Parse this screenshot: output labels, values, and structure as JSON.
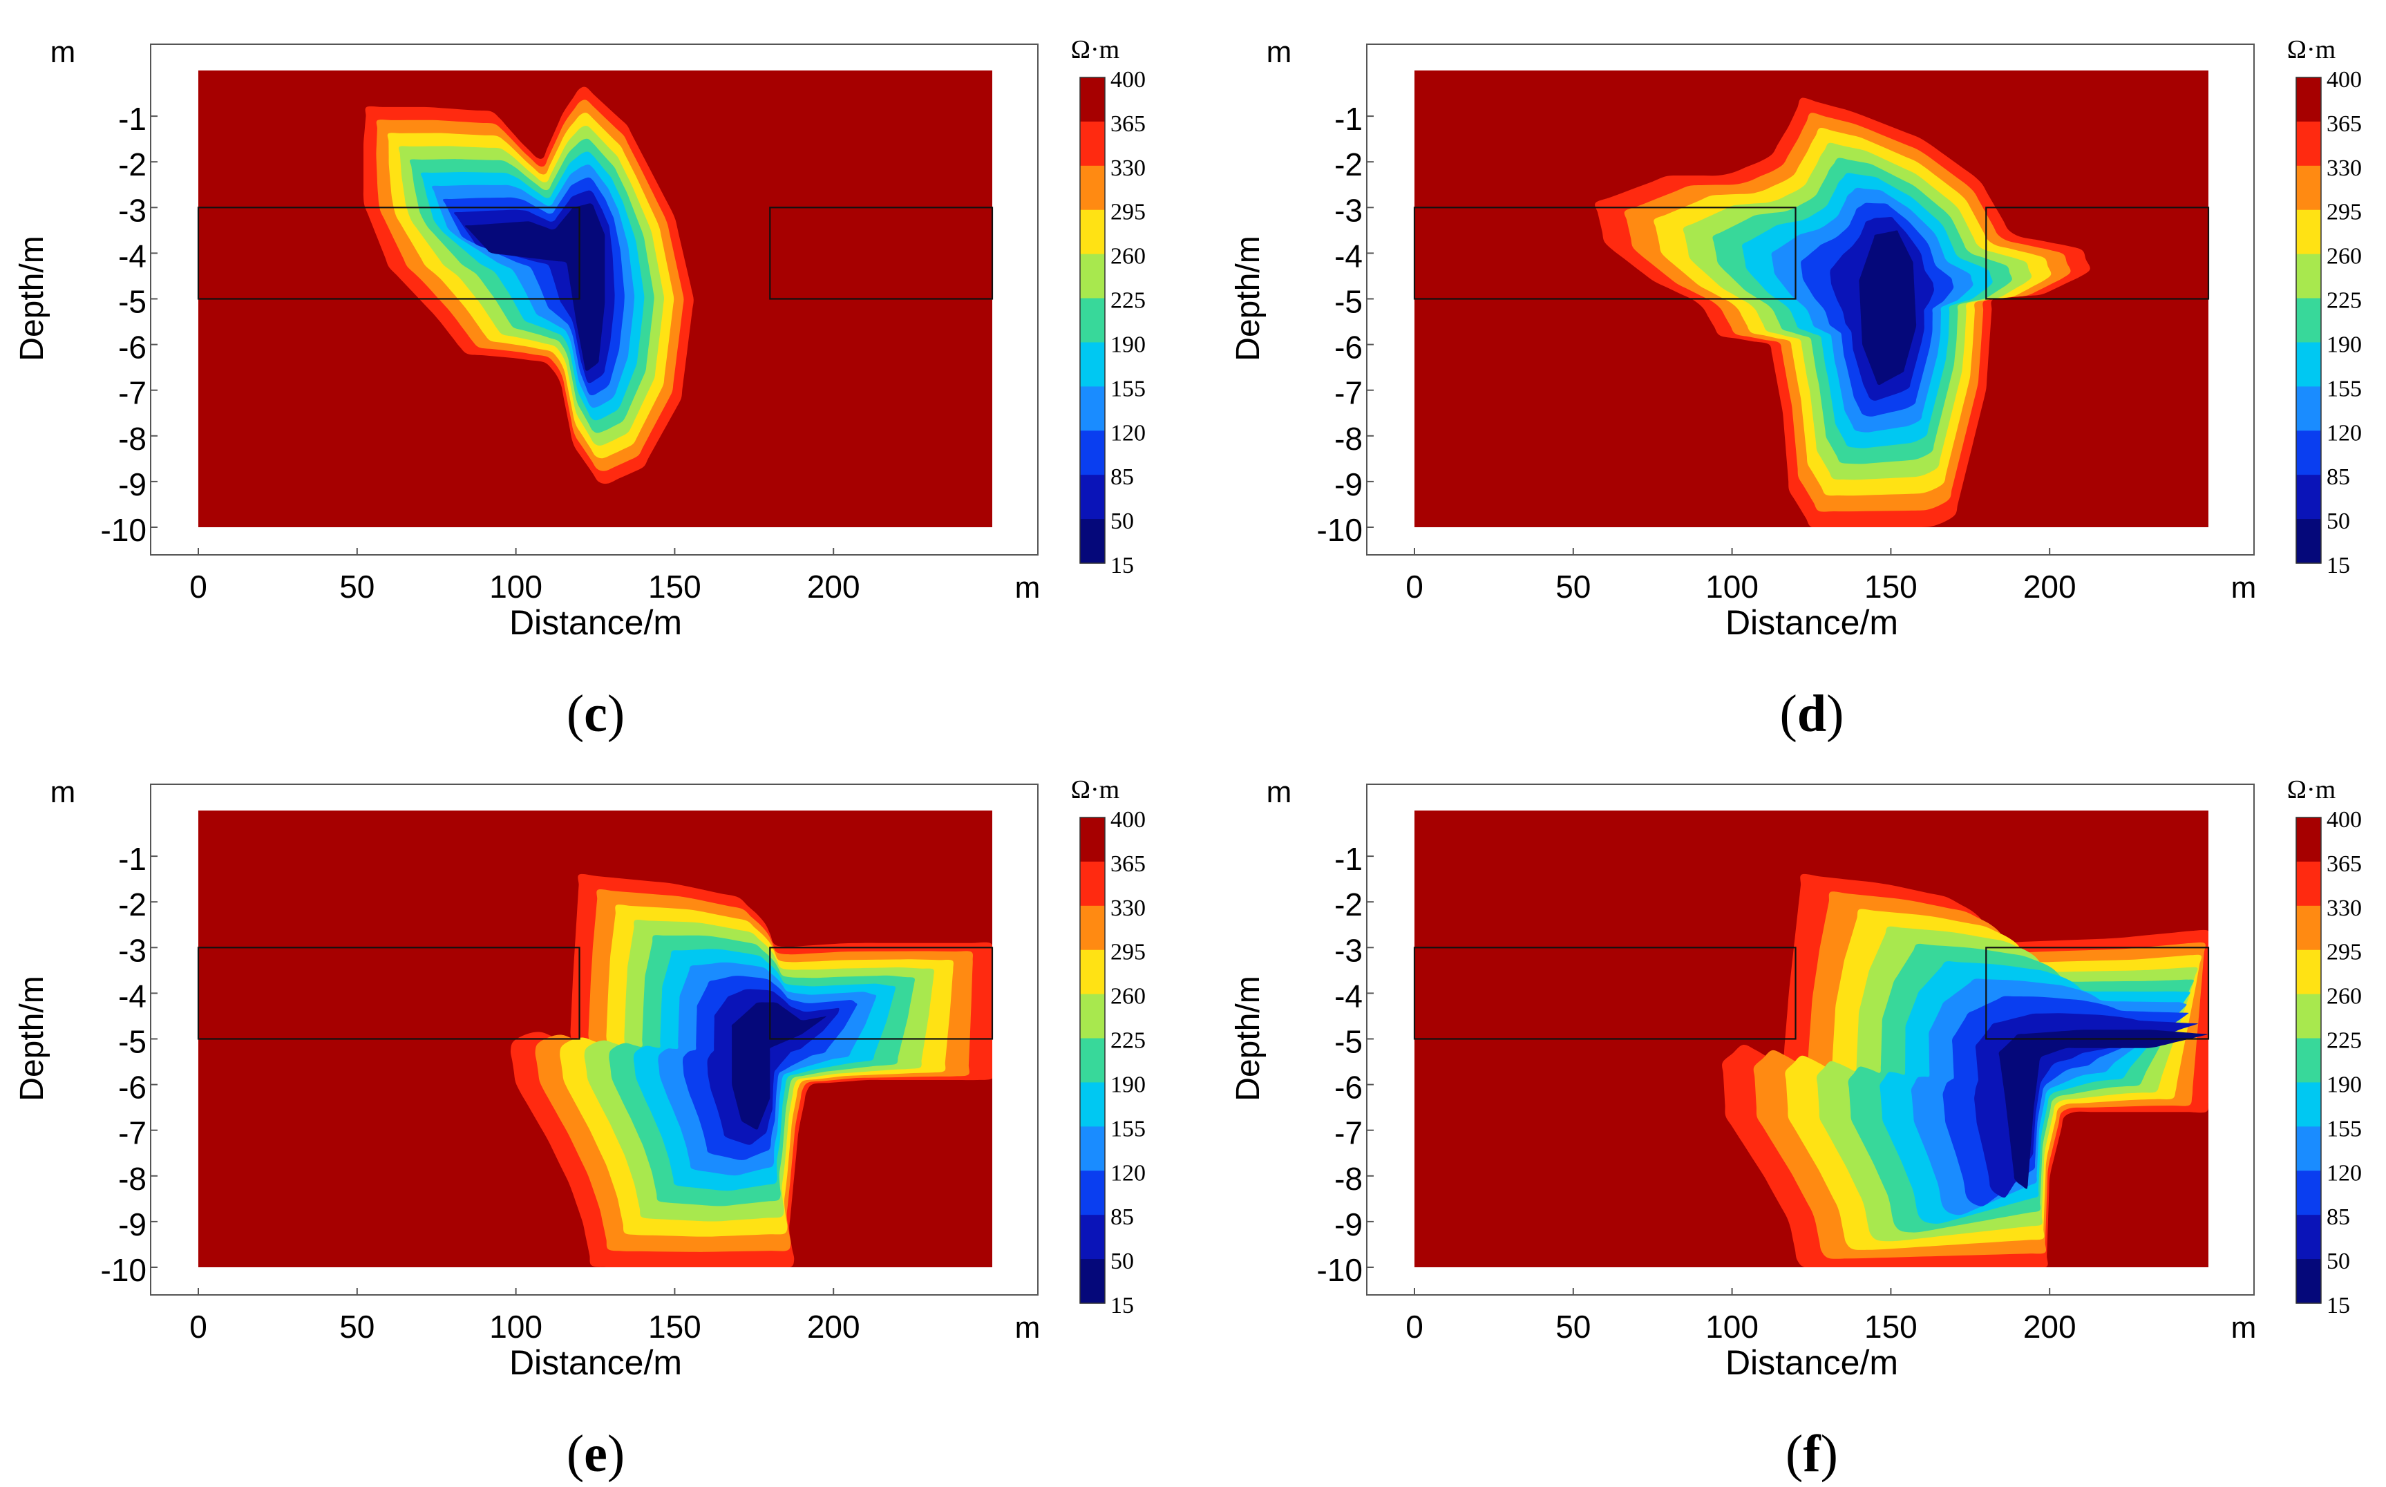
{
  "figure": {
    "panels": [
      {
        "id": "c",
        "caption_letter": "c"
      },
      {
        "id": "d",
        "caption_letter": "d"
      },
      {
        "id": "e",
        "caption_letter": "e"
      },
      {
        "id": "f",
        "caption_letter": "f"
      }
    ]
  },
  "chart_data": [
    {
      "panel": "c",
      "type": "heatmap",
      "title": "",
      "xlabel": "Distance/m",
      "ylabel": "Depth/m",
      "x_unit": "m",
      "y_unit": "m",
      "xlim": [
        0,
        250
      ],
      "ylim": [
        -10,
        0
      ],
      "x_ticks": [
        "0",
        "50",
        "100",
        "150",
        "200"
      ],
      "y_ticks": [
        "-1",
        "-2",
        "-3",
        "-4",
        "-5",
        "-6",
        "-7",
        "-8",
        "-9",
        "-10"
      ],
      "colorbar": {
        "unit": "Ω·m",
        "levels": [
          "400",
          "365",
          "330",
          "295",
          "260",
          "225",
          "190",
          "155",
          "120",
          "85",
          "50",
          "15"
        ]
      },
      "boxes": [
        {
          "x": [
            0,
            120
          ],
          "depth": [
            -3,
            -5
          ]
        },
        {
          "x": [
            180,
            250
          ],
          "depth": [
            -3,
            -5
          ]
        }
      ],
      "low_zone": {
        "shape": "L-shaped anomaly",
        "x_range": [
          53,
          155
        ],
        "depth_range": [
          -0.8,
          -9.1
        ],
        "min_value_center": {
          "x": 118,
          "depth": -4.5,
          "value": 15
        }
      }
    },
    {
      "panel": "d",
      "type": "heatmap",
      "title": "",
      "xlabel": "Distance/m",
      "ylabel": "Depth/m",
      "x_unit": "m",
      "y_unit": "m",
      "xlim": [
        0,
        250
      ],
      "ylim": [
        -10,
        0
      ],
      "x_ticks": [
        "0",
        "50",
        "100",
        "150",
        "200"
      ],
      "y_ticks": [
        "-1",
        "-2",
        "-3",
        "-4",
        "-5",
        "-6",
        "-7",
        "-8",
        "-9",
        "-10"
      ],
      "colorbar": {
        "unit": "Ω·m",
        "levels": [
          "400",
          "365",
          "330",
          "295",
          "260",
          "225",
          "190",
          "155",
          "120",
          "85",
          "50",
          "15"
        ]
      },
      "boxes": [
        {
          "x": [
            0,
            120
          ],
          "depth": [
            -3,
            -5
          ]
        },
        {
          "x": [
            180,
            250
          ],
          "depth": [
            -3,
            -5
          ]
        }
      ],
      "low_zone": {
        "shape": "oval anomaly",
        "x_range": [
          55,
          213
        ],
        "depth_range": [
          -0.6,
          -10
        ],
        "min_value_center": {
          "x": 150,
          "depth": -5,
          "value": 15
        }
      }
    },
    {
      "panel": "e",
      "type": "heatmap",
      "title": "",
      "xlabel": "Distance/m",
      "ylabel": "Depth/m",
      "x_unit": "m",
      "y_unit": "m",
      "xlim": [
        0,
        250
      ],
      "ylim": [
        -10,
        0
      ],
      "x_ticks": [
        "0",
        "50",
        "100",
        "150",
        "200"
      ],
      "y_ticks": [
        "-1",
        "-2",
        "-3",
        "-4",
        "-5",
        "-6",
        "-7",
        "-8",
        "-9",
        "-10"
      ],
      "colorbar": {
        "unit": "Ω·m",
        "levels": [
          "400",
          "365",
          "330",
          "295",
          "260",
          "225",
          "190",
          "155",
          "120",
          "85",
          "50",
          "15"
        ]
      },
      "boxes": [
        {
          "x": [
            0,
            120
          ],
          "depth": [
            -3,
            -5
          ]
        },
        {
          "x": [
            180,
            250
          ],
          "depth": [
            -3,
            -5
          ]
        }
      ],
      "low_zone": {
        "shape": "L-shaped anomaly",
        "x_range": [
          95,
          250
        ],
        "depth_range": [
          -1.4,
          -10
        ],
        "min_value_center": {
          "x": 173,
          "depth": -5.9,
          "value": 15
        }
      }
    },
    {
      "panel": "f",
      "type": "heatmap",
      "title": "",
      "xlabel": "Distance/m",
      "ylabel": "Depth/m",
      "x_unit": "m",
      "y_unit": "m",
      "xlim": [
        0,
        250
      ],
      "ylim": [
        -10,
        0
      ],
      "x_ticks": [
        "0",
        "50",
        "100",
        "150",
        "200"
      ],
      "y_ticks": [
        "-1",
        "-2",
        "-3",
        "-4",
        "-5",
        "-6",
        "-7",
        "-8",
        "-9",
        "-10"
      ],
      "colorbar": {
        "unit": "Ω·m",
        "levels": [
          "400",
          "365",
          "330",
          "295",
          "260",
          "225",
          "190",
          "155",
          "120",
          "85",
          "50",
          "15"
        ]
      },
      "boxes": [
        {
          "x": [
            0,
            120
          ],
          "depth": [
            -3,
            -5
          ]
        },
        {
          "x": [
            180,
            250
          ],
          "depth": [
            -3,
            -5
          ]
        }
      ],
      "low_zone": {
        "shape": "L-shaped anomaly",
        "x_range": [
          97,
          250
        ],
        "depth_range": [
          -1.4,
          -10
        ],
        "min_value_center": {
          "x": 205,
          "depth": -5.1,
          "value": 15
        }
      }
    }
  ],
  "colors": {
    "background_high": "#a60000",
    "level_colors": [
      "#a60000",
      "#ff2a10",
      "#ff8a12",
      "#ffe214",
      "#a8e84e",
      "#38d89a",
      "#00c8f2",
      "#1a8cff",
      "#0a3ef0",
      "#0a14b8",
      "#05087a"
    ]
  }
}
